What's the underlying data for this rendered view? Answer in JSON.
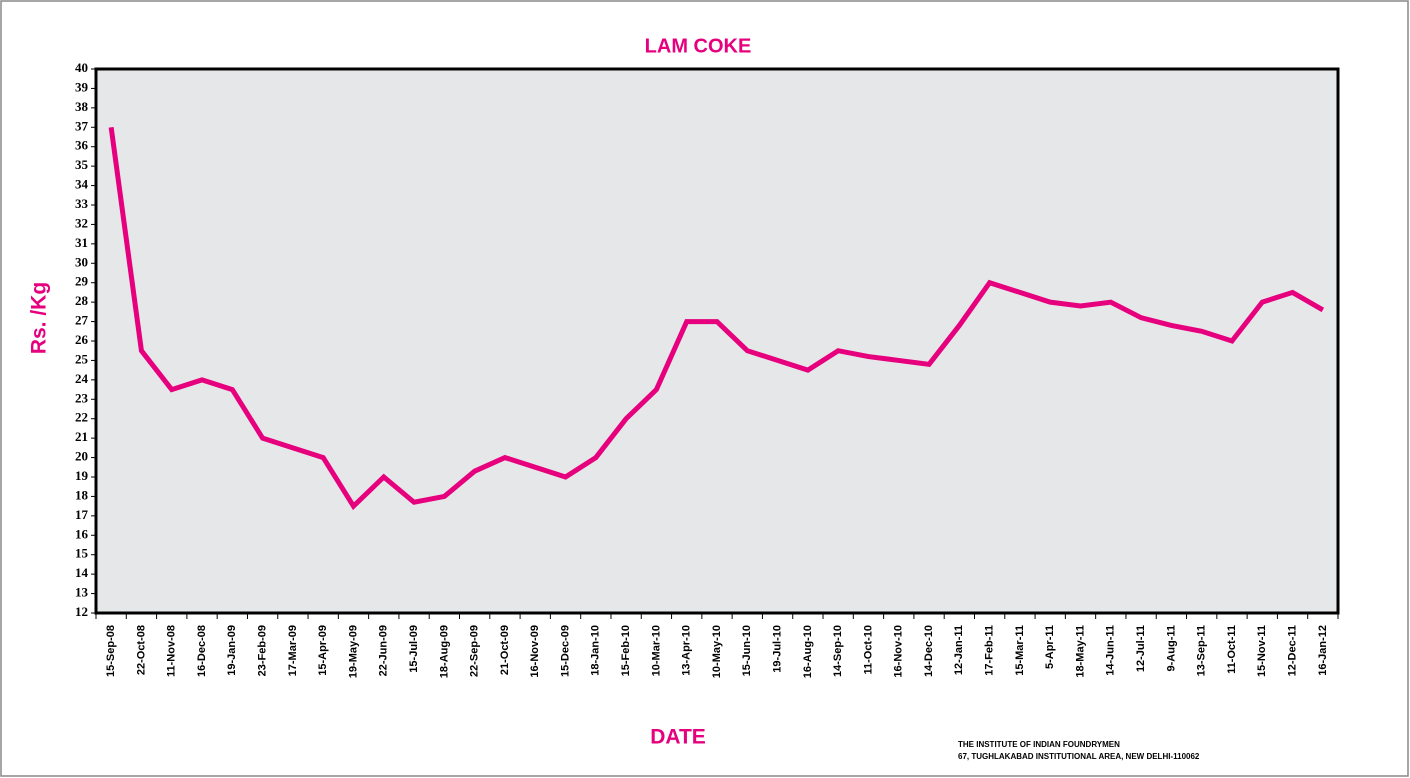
{
  "chart_data": {
    "type": "line",
    "title": "LAM COKE",
    "xlabel": "DATE",
    "ylabel": "Rs. /Kg",
    "annotations": [
      "THE INSTITUTE OF INDIAN FOUNDRYMEN",
      "67, TUGHLAKABAD INSTITUTIONAL AREA, NEW DELHI-110062"
    ],
    "categories": [
      "15-Sep-08",
      "22-Oct-08",
      "11-Nov-08",
      "16-Dec-08",
      "19-Jan-09",
      "23-Feb-09",
      "17-Mar-09",
      "15-Apr-09",
      "19-May-09",
      "22-Jun-09",
      "15-Jul-09",
      "18-Aug-09",
      "22-Sep-09",
      "21-Oct-09",
      "16-Nov-09",
      "15-Dec-09",
      "18-Jan-10",
      "15-Feb-10",
      "10-Mar-10",
      "13-Apr-10",
      "10-May-10",
      "15-Jun-10",
      "19-Jul-10",
      "16-Aug-10",
      "14-Sep-10",
      "11-Oct-10",
      "16-Nov-10",
      "14-Dec-10",
      "12-Jan-11",
      "17-Feb-11",
      "15-Mar-11",
      "5-Apr-11",
      "18-May-11",
      "14-Jun-11",
      "12-Jul-11",
      "9-Aug-11",
      "13-Sep-11",
      "11-Oct-11",
      "15-Nov-11",
      "12-Dec-11",
      "16-Jan-12"
    ],
    "series": [
      {
        "color": "#e6007e",
        "values": [
          37,
          25.5,
          23.5,
          24,
          23.5,
          21,
          20.5,
          20,
          17.5,
          19,
          17.7,
          18,
          19.3,
          20,
          19.5,
          19,
          20,
          22,
          23.5,
          27,
          27,
          25.5,
          25,
          24.5,
          25.5,
          25.2,
          25,
          24.8,
          26.8,
          29,
          28.5,
          28,
          27.8,
          28,
          27.2,
          26.8,
          26.5,
          26,
          28,
          28.5,
          27.6
        ]
      }
    ],
    "ylim": [
      12,
      40
    ],
    "yticks": [
      12,
      13,
      14,
      15,
      16,
      17,
      18,
      19,
      20,
      21,
      22,
      23,
      24,
      25,
      26,
      27,
      28,
      29,
      30,
      31,
      32,
      33,
      34,
      35,
      36,
      37,
      38,
      39,
      40
    ],
    "grid": false,
    "plot_background": "#e6e7e8"
  }
}
